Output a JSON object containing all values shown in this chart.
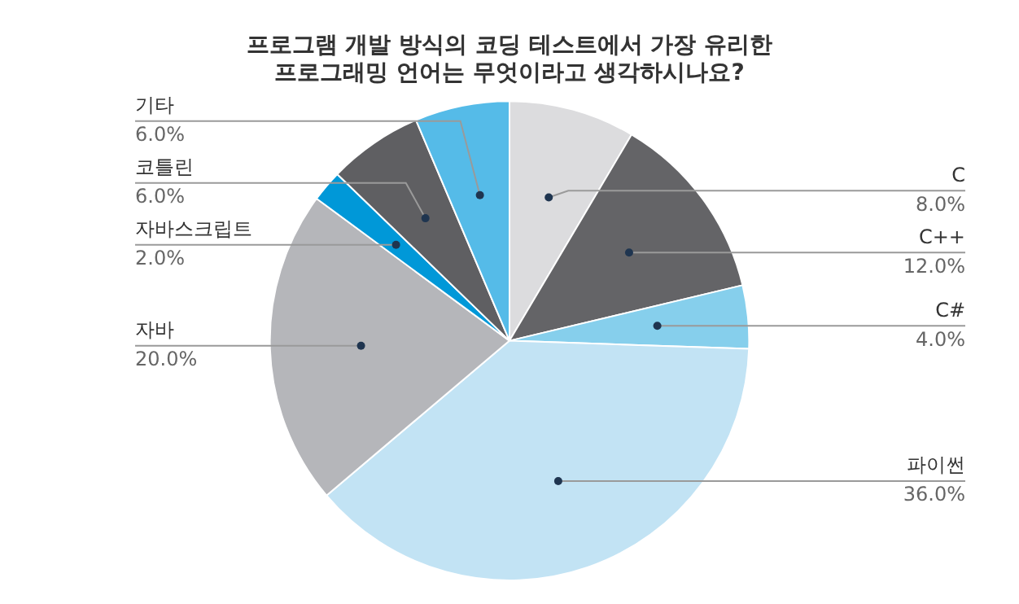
{
  "chart_data": {
    "type": "pie",
    "title": "프로그램 개발 방식의 코딩 테스트에서 가장 유리한\n프로그래밍 언어는 무엇이라고 생각하시나요?",
    "categories": [
      "C",
      "C++",
      "C#",
      "파이썬",
      "자바",
      "자바스크립트",
      "코틀린",
      "기타"
    ],
    "values": [
      8,
      12,
      4,
      36,
      20,
      2,
      6,
      6
    ],
    "value_labels": [
      "8.0%",
      "12.0%",
      "4.0%",
      "36.0%",
      "20.0%",
      "2.0%",
      "6.0%",
      "6.0%"
    ],
    "colors": [
      "#dcdcde",
      "#646467",
      "#86cfec",
      "#c2e3f4",
      "#b5b6ba",
      "#0098d8",
      "#5f5f62",
      "#55bbe8"
    ],
    "legend": false
  }
}
